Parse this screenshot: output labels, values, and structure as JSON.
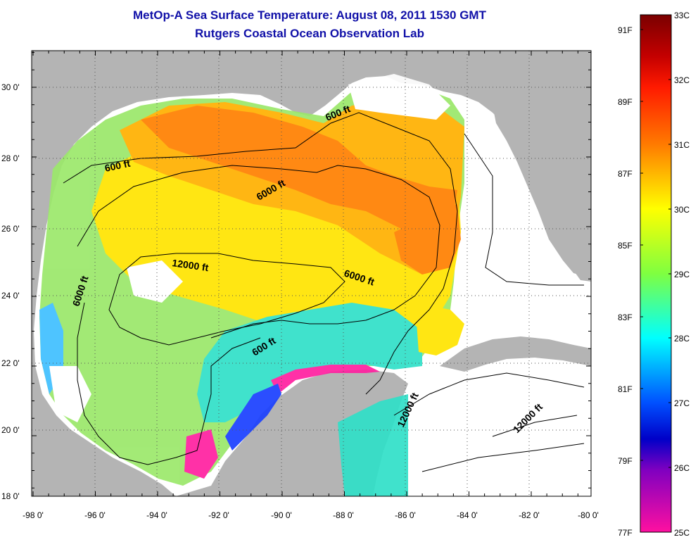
{
  "header": {
    "title": "MetOp-A Sea Surface Temperature:  August 08, 2011 1530 GMT",
    "subtitle": "Rutgers Coastal Ocean Observation Lab"
  },
  "axes": {
    "x_ticks": [
      "-98 0'",
      "-96 0'",
      "-94 0'",
      "-92 0'",
      "-90 0'",
      "-88 0'",
      "-86 0'",
      "-84 0'",
      "-82 0'",
      "-80 0'"
    ],
    "y_ticks": [
      "30 0'",
      "28 0'",
      "26 0'",
      "24 0'",
      "22 0'",
      "20 0'",
      "18 0'"
    ]
  },
  "contour_labels": [
    "600 ft",
    "600 ft",
    "6000 ft",
    "6000 ft",
    "12000 ft",
    "6000 ft",
    "600 ft",
    "12000 ft",
    "12000 ft"
  ],
  "colorbar": {
    "celsius": [
      "33C",
      "32C",
      "31C",
      "30C",
      "29C",
      "28C",
      "27C",
      "26C",
      "25C"
    ],
    "fahrenheit": [
      "91F",
      "89F",
      "87F",
      "85F",
      "83F",
      "81F",
      "79F",
      "77F"
    ]
  },
  "colors": {
    "title": "#1010a8",
    "land": "#b4b4b4",
    "no_data": "#ffffff"
  }
}
